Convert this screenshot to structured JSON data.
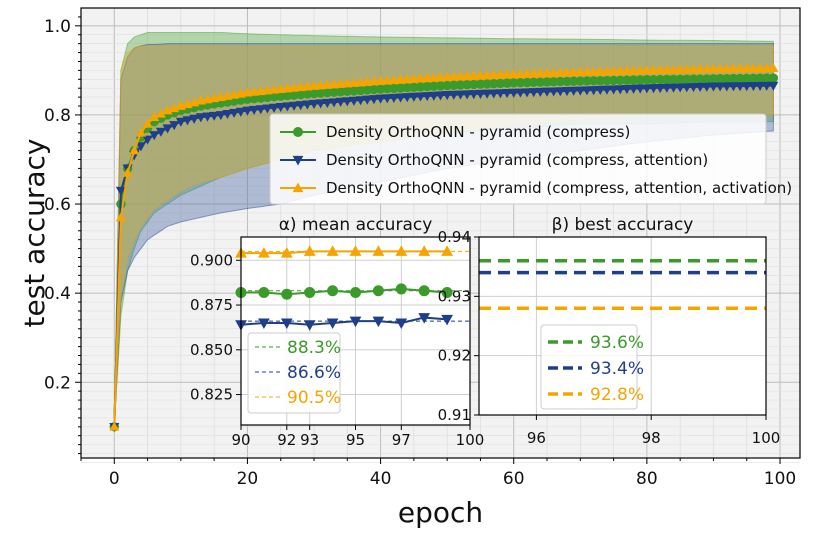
{
  "chart_data": [
    {
      "type": "line",
      "xlabel": "epoch",
      "ylabel": "test accuracy",
      "xlim": [
        -5,
        103
      ],
      "ylim": [
        0.03,
        1.04
      ],
      "xticks": [
        0,
        20,
        40,
        60,
        80,
        100
      ],
      "yticks": [
        0.2,
        0.4,
        0.6,
        0.8,
        1.0
      ],
      "xtick_labels": [
        "0",
        "20",
        "40",
        "60",
        "80",
        "100"
      ],
      "ytick_labels": [
        "0.2",
        "0.4",
        "0.6",
        "0.8",
        "1.0"
      ],
      "grid": true,
      "legend_position": "upper-right",
      "x": [
        0,
        1,
        2,
        3,
        4,
        5,
        6,
        8,
        10,
        13,
        16,
        20,
        25,
        30,
        40,
        50,
        60,
        70,
        80,
        90,
        100
      ],
      "series": [
        {
          "name": "Density OrthoQNN - pyramid (compress)",
          "color": "#3a9a2a",
          "fill": "#5cae4a",
          "marker": "circle",
          "mean": [
            0.1,
            0.6,
            0.68,
            0.72,
            0.75,
            0.77,
            0.785,
            0.8,
            0.81,
            0.82,
            0.827,
            0.835,
            0.842,
            0.848,
            0.858,
            0.866,
            0.872,
            0.876,
            0.879,
            0.881,
            0.883
          ],
          "upper": [
            0.1,
            0.9,
            0.96,
            0.975,
            0.98,
            0.985,
            0.985,
            0.985,
            0.985,
            0.985,
            0.985,
            0.982,
            0.98,
            0.978,
            0.975,
            0.973,
            0.971,
            0.97,
            0.968,
            0.967,
            0.965
          ],
          "lower": [
            0.1,
            0.35,
            0.45,
            0.5,
            0.54,
            0.56,
            0.58,
            0.6,
            0.62,
            0.64,
            0.66,
            0.68,
            0.7,
            0.72,
            0.74,
            0.76,
            0.77,
            0.78,
            0.78,
            0.785,
            0.785
          ]
        },
        {
          "name": "Density OrthoQNN - pyramid (compress, attention)",
          "color": "#1f3f8a",
          "fill": "#5070a8",
          "marker": "triangle-down",
          "mean": [
            0.1,
            0.63,
            0.68,
            0.71,
            0.73,
            0.745,
            0.755,
            0.77,
            0.785,
            0.795,
            0.8,
            0.81,
            0.818,
            0.825,
            0.837,
            0.845,
            0.85,
            0.855,
            0.86,
            0.864,
            0.866
          ],
          "upper": [
            0.1,
            0.88,
            0.93,
            0.95,
            0.955,
            0.958,
            0.958,
            0.96,
            0.96,
            0.96,
            0.96,
            0.96,
            0.96,
            0.96,
            0.96,
            0.96,
            0.96,
            0.96,
            0.96,
            0.96,
            0.96
          ],
          "lower": [
            0.1,
            0.38,
            0.45,
            0.48,
            0.5,
            0.52,
            0.53,
            0.55,
            0.56,
            0.57,
            0.58,
            0.59,
            0.6,
            0.62,
            0.65,
            0.68,
            0.7,
            0.72,
            0.74,
            0.755,
            0.765
          ]
        },
        {
          "name": "Density OrthoQNN - pyramid (compress, attention, activation)",
          "color": "#f5a400",
          "fill": "#e0b130",
          "marker": "triangle-up",
          "mean": [
            0.1,
            0.57,
            0.67,
            0.72,
            0.76,
            0.78,
            0.795,
            0.81,
            0.82,
            0.832,
            0.84,
            0.85,
            0.858,
            0.865,
            0.876,
            0.885,
            0.891,
            0.896,
            0.9,
            0.903,
            0.905
          ],
          "upper": [
            0.1,
            0.9,
            0.94,
            0.95,
            0.955,
            0.955,
            0.955,
            0.955,
            0.955,
            0.955,
            0.955,
            0.955,
            0.955,
            0.955,
            0.955,
            0.955,
            0.955,
            0.955,
            0.955,
            0.955,
            0.955
          ],
          "lower": [
            0.1,
            0.4,
            0.48,
            0.52,
            0.55,
            0.57,
            0.59,
            0.61,
            0.63,
            0.65,
            0.66,
            0.68,
            0.7,
            0.72,
            0.74,
            0.76,
            0.78,
            0.79,
            0.8,
            0.8,
            0.8
          ]
        }
      ]
    },
    {
      "type": "line",
      "title": "α) mean accuracy",
      "xlim": [
        90,
        100
      ],
      "ylim": [
        0.808,
        0.913
      ],
      "xticks": [
        90,
        92,
        93,
        95,
        97,
        100
      ],
      "yticks": [
        0.825,
        0.85,
        0.875,
        0.9
      ],
      "xtick_labels": [
        "90",
        "92",
        "93",
        "95",
        "97",
        "100"
      ],
      "ytick_labels": [
        "0.825",
        "0.850",
        "0.875",
        "0.900"
      ],
      "x": [
        90,
        91,
        92,
        93,
        94,
        95,
        96,
        97,
        98,
        99
      ],
      "series": [
        {
          "color": "#3a9a2a",
          "marker": "circle",
          "values": [
            0.882,
            0.882,
            0.881,
            0.882,
            0.883,
            0.882,
            0.883,
            0.884,
            0.883,
            0.882
          ],
          "reference": 0.883,
          "reference_label": "88.3%"
        },
        {
          "color": "#1f3f8a",
          "marker": "triangle-down",
          "values": [
            0.864,
            0.865,
            0.865,
            0.864,
            0.865,
            0.866,
            0.866,
            0.865,
            0.868,
            0.867
          ],
          "reference": 0.866,
          "reference_label": "86.6%"
        },
        {
          "color": "#f5a400",
          "marker": "triangle-up",
          "values": [
            0.904,
            0.904,
            0.904,
            0.905,
            0.905,
            0.905,
            0.905,
            0.905,
            0.905,
            0.905
          ],
          "reference": 0.905,
          "reference_label": "90.5%"
        }
      ]
    },
    {
      "type": "line",
      "title": "β) best accuracy",
      "xlim": [
        95,
        100
      ],
      "ylim": [
        0.91,
        0.94
      ],
      "xticks": [
        96,
        98,
        100
      ],
      "yticks": [
        0.91,
        0.92,
        0.93,
        0.94
      ],
      "xtick_labels": [
        "96",
        "98",
        "100"
      ],
      "ytick_labels": [
        "0.91",
        "0.92",
        "0.93",
        "0.94"
      ],
      "series": [
        {
          "color": "#3a9a2a",
          "value": 0.936,
          "label": "93.6%"
        },
        {
          "color": "#1f3f8a",
          "value": 0.934,
          "label": "93.4%"
        },
        {
          "color": "#f5a400",
          "value": 0.928,
          "label": "92.8%"
        }
      ]
    }
  ]
}
